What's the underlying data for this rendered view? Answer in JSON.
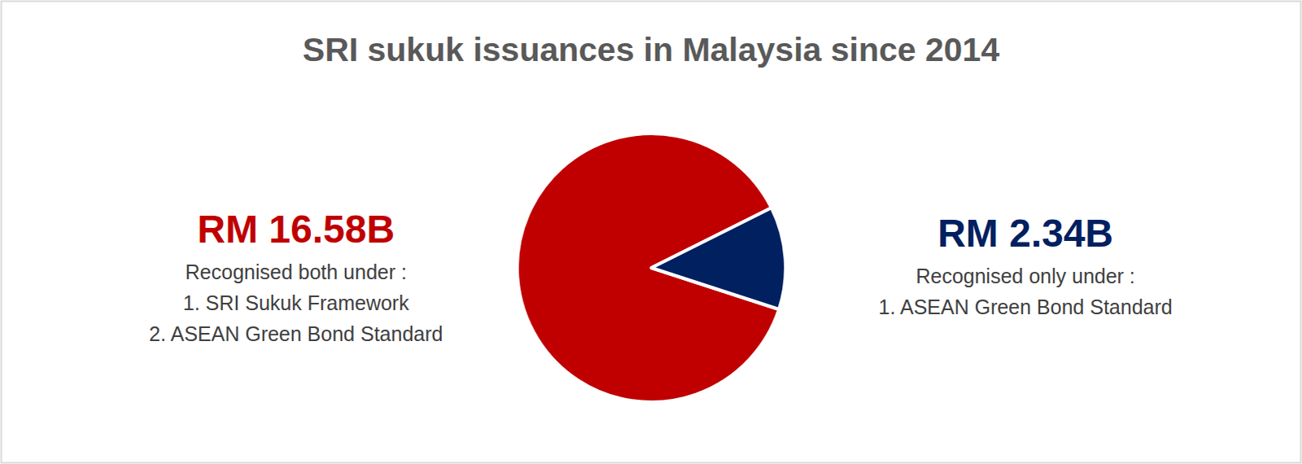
{
  "chart_data": {
    "type": "pie",
    "title": "SRI sukuk issuances in Malaysia since 2014",
    "categories": [
      "Recognised both under :",
      "Recognised only under :"
    ],
    "values": [
      16.58,
      2.34
    ],
    "value_labels": [
      "RM 16.58B",
      "RM 2.34B"
    ],
    "annotations": [
      [
        "1. SRI Sukuk Framework",
        "2. ASEAN Green Bond Standard"
      ],
      [
        "1. ASEAN Green Bond Standard"
      ]
    ],
    "colors": [
      "#c00000",
      "#002060"
    ],
    "data_labels": true
  }
}
